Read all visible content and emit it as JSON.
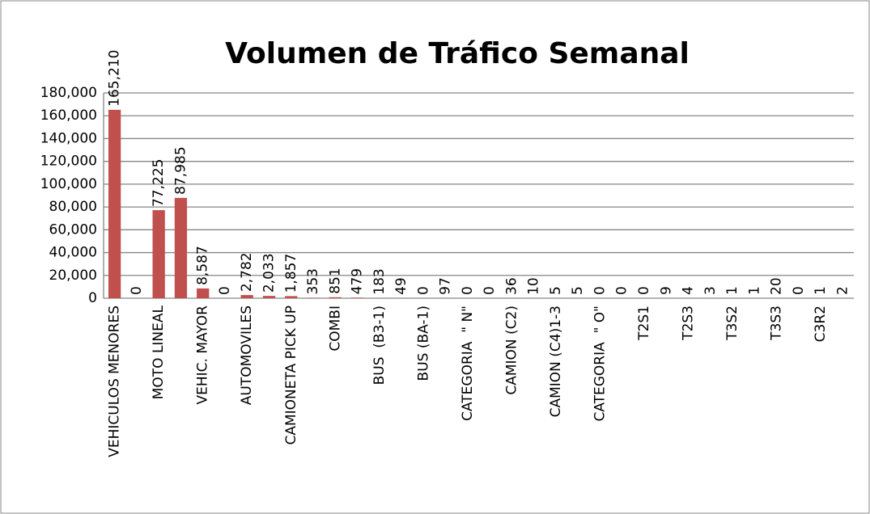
{
  "chart_data": {
    "type": "bar",
    "title": "Volumen de Tráfico Semanal",
    "categories": [
      "VEHICULOS MENORES",
      null,
      "MOTO LINEAL",
      null,
      "VEHIC. MAYOR",
      null,
      "AUTOMOVILES",
      null,
      "CAMIONETA PICK UP",
      null,
      "COMBI",
      null,
      "BUS  (B3-1)",
      null,
      "BUS (BA-1)",
      null,
      "CATEGORIA  \" N\"",
      null,
      "CAMION (C2)",
      null,
      "CAMION (C4)1-3",
      null,
      "CATEGORIA  \" O\"",
      null,
      "T2S1",
      null,
      "T2S3",
      null,
      "T3S2",
      null,
      "T3S3",
      null,
      "C3R2",
      null
    ],
    "values": [
      165210,
      0,
      77225,
      87985,
      8587,
      0,
      2782,
      2033,
      1857,
      353,
      851,
      479,
      183,
      49,
      0,
      97,
      0,
      0,
      36,
      10,
      5,
      5,
      0,
      0,
      0,
      9,
      4,
      3,
      1,
      1,
      20,
      0,
      1,
      2
    ],
    "value_labels": [
      "165,210",
      "0",
      "77,225",
      "87,985",
      "8,587",
      "0",
      "2,782",
      "2,033",
      "1,857",
      "353",
      "851",
      "479",
      "183",
      "49",
      "0",
      "97",
      "0",
      "0",
      "36",
      "10",
      "5",
      "5",
      "0",
      "0",
      "0",
      "9",
      "4",
      "3",
      "1",
      "1",
      "20",
      "0",
      "1",
      "2"
    ],
    "color": "#c0504d",
    "ylim": [
      0,
      180000
    ],
    "yticks": [
      0,
      {
        "value": 20000,
        "label": "20,000"
      },
      {
        "value": 40000,
        "label": "40,000"
      },
      {
        "value": 60000,
        "label": "60,000"
      },
      {
        "value": 80000,
        "label": "80,000"
      },
      {
        "value": 100000,
        "label": "100,000"
      },
      {
        "value": 120000,
        "label": "120,000"
      },
      {
        "value": 140000,
        "label": "140,000"
      },
      {
        "value": 160000,
        "label": "160,000"
      },
      {
        "value": 180000,
        "label": "180,000"
      }
    ],
    "grid": true
  }
}
